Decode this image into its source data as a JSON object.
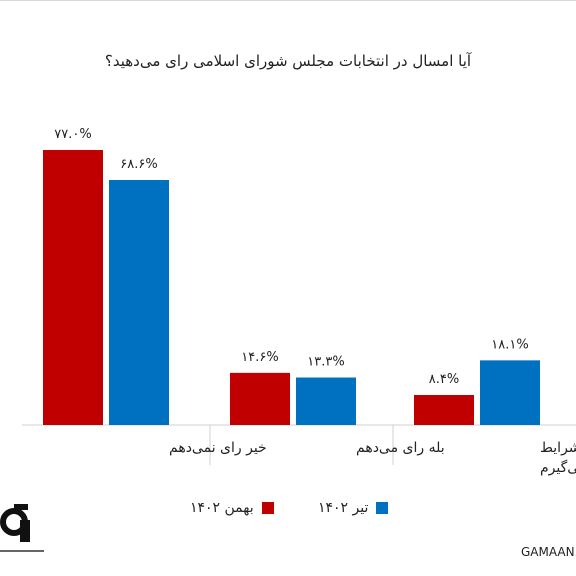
{
  "chart_data": {
    "type": "bar",
    "title": "آیا امسال در انتخابات مجلس شورای اسلامی رای می‌دهید؟",
    "categories": [
      "خیر رای نمی‌دهم",
      "بله رای می‌دهم",
      "هنوز نمی‌دانم و با توجه به شرایط تصمیم می‌گیرم"
    ],
    "category_lines": [
      [
        "خیر رای نمی‌دهم"
      ],
      [
        "بله رای می‌دهم"
      ],
      [
        "هنوز نمی‌دانم و با توجه به شرایط",
        "تصمیم می‌گیرم"
      ]
    ],
    "series": [
      {
        "name": "بهمن ۱۴۰۲",
        "values": [
          77.0,
          14.6,
          8.4
        ],
        "labels": [
          "۷۷.۰%",
          "۱۴.۶%",
          "۸.۴%"
        ],
        "color": "#c00000"
      },
      {
        "name": "تیر ۱۴۰۲",
        "values": [
          68.6,
          13.3,
          18.1
        ],
        "labels": [
          "۶۸.۶%",
          "۱۳.۳%",
          "۱۸.۱%"
        ],
        "color": "#0070c0"
      }
    ],
    "ylim": [
      0,
      80
    ],
    "grid": false,
    "legend_position": "bottom"
  },
  "brand": {
    "site": "GAMAAN.org",
    "logo_icon": "gamaan-logo-icon"
  }
}
